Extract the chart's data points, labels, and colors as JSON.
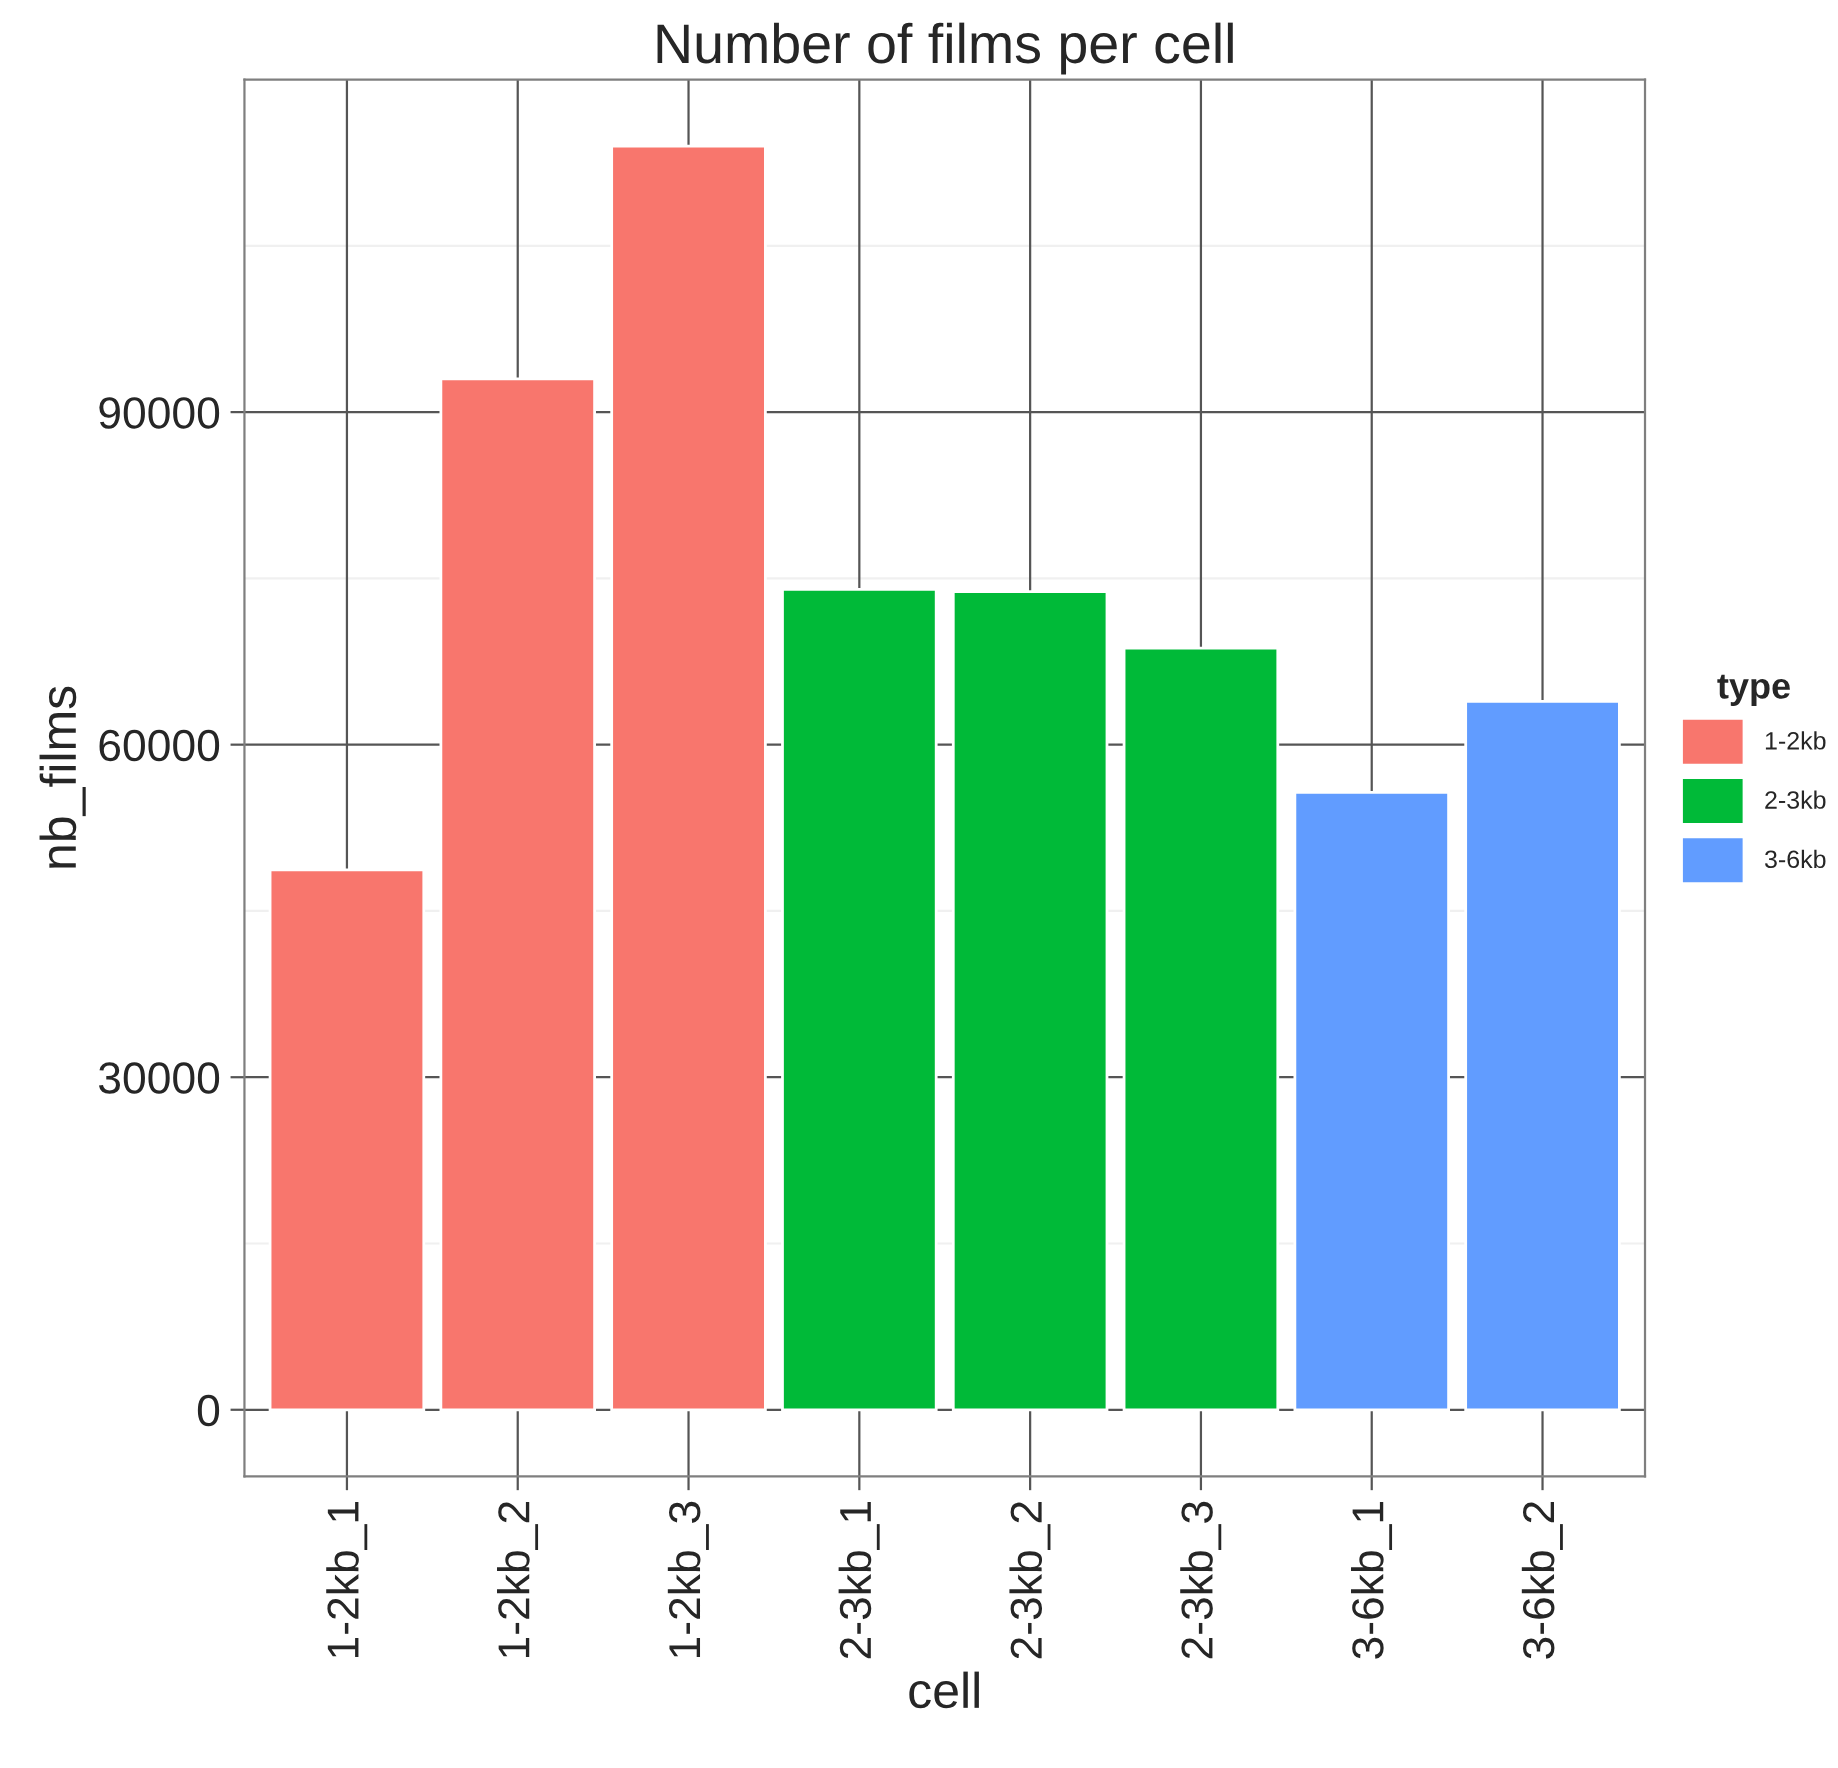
{
  "chart_data": {
    "type": "bar",
    "title": "Number of films per cell",
    "xlabel": "cell",
    "ylabel": "nb_films",
    "legend_title": "type",
    "categories": [
      "1-2kb_1",
      "1-2kb_2",
      "1-2kb_3",
      "2-3kb_1",
      "2-3kb_2",
      "2-3kb_3",
      "3-6kb_1",
      "3-6kb_2"
    ],
    "series": [
      {
        "name": "1-2kb",
        "color": "#f8766d",
        "values": [
          48700,
          93000,
          114000,
          null,
          null,
          null,
          null,
          null
        ]
      },
      {
        "name": "2-3kb",
        "color": "#00ba38",
        "values": [
          null,
          null,
          null,
          74000,
          73800,
          68700,
          null,
          null
        ]
      },
      {
        "name": "3-6kb",
        "color": "#619cff",
        "values": [
          null,
          null,
          null,
          null,
          null,
          null,
          55700,
          63900
        ]
      }
    ],
    "ylim": [
      -6000,
      120000
    ],
    "yticks": [
      0,
      30000,
      60000,
      90000
    ],
    "grid": true,
    "legend": "right"
  }
}
